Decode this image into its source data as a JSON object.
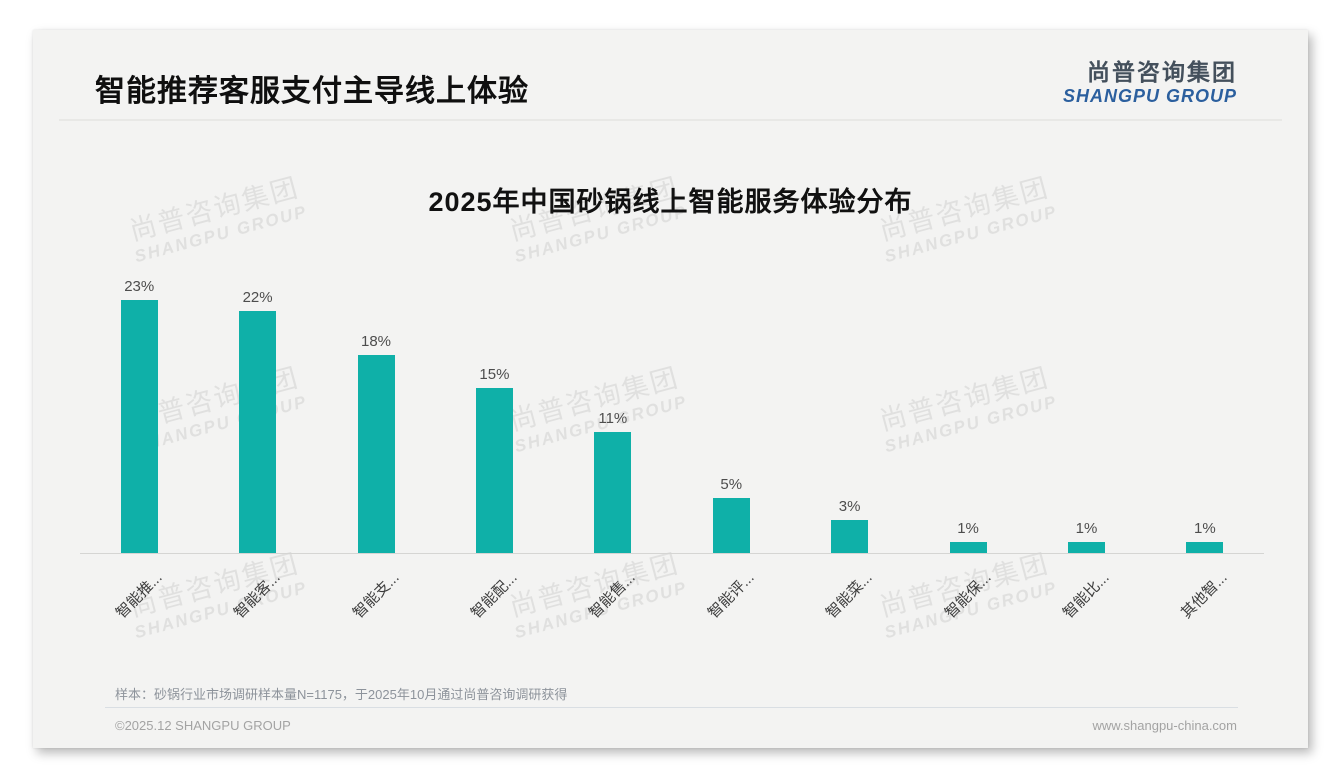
{
  "slide": {
    "title": "智能推荐客服支付主导线上体验",
    "logo": {
      "cn": "尚普咨询集团",
      "en": "SHANGPU GROUP"
    },
    "watermark": {
      "cn": "尚普咨询集团",
      "en": "SHANGPU GROUP"
    },
    "note": "样本：砂锅行业市场调研样本量N=1175，于2025年10月通过尚普咨询调研获得",
    "footer_left": "©2025.12 SHANGPU GROUP",
    "footer_right": "www.shangpu-china.com"
  },
  "chart_data": {
    "type": "bar",
    "title": "2025年中国砂锅线上智能服务体验分布",
    "categories": [
      "智能推...",
      "智能客...",
      "智能支...",
      "智能配...",
      "智能售...",
      "智能评...",
      "智能菜...",
      "智能保...",
      "智能比...",
      "其他智..."
    ],
    "values": [
      23,
      22,
      18,
      15,
      11,
      5,
      3,
      1,
      1,
      1
    ],
    "data_labels": [
      "23%",
      "22%",
      "18%",
      "15%",
      "11%",
      "5%",
      "3%",
      "1%",
      "1%",
      "1%"
    ],
    "unit": "%",
    "xlabel": "",
    "ylabel": "",
    "ylim": [
      0,
      25
    ],
    "grid": false,
    "legend": "none",
    "x_label_rotation_deg": 45,
    "bar_color": "#0fb0a8",
    "value_label_color": "#4d4d4d",
    "axis_line_color": "#d5d5d3"
  }
}
